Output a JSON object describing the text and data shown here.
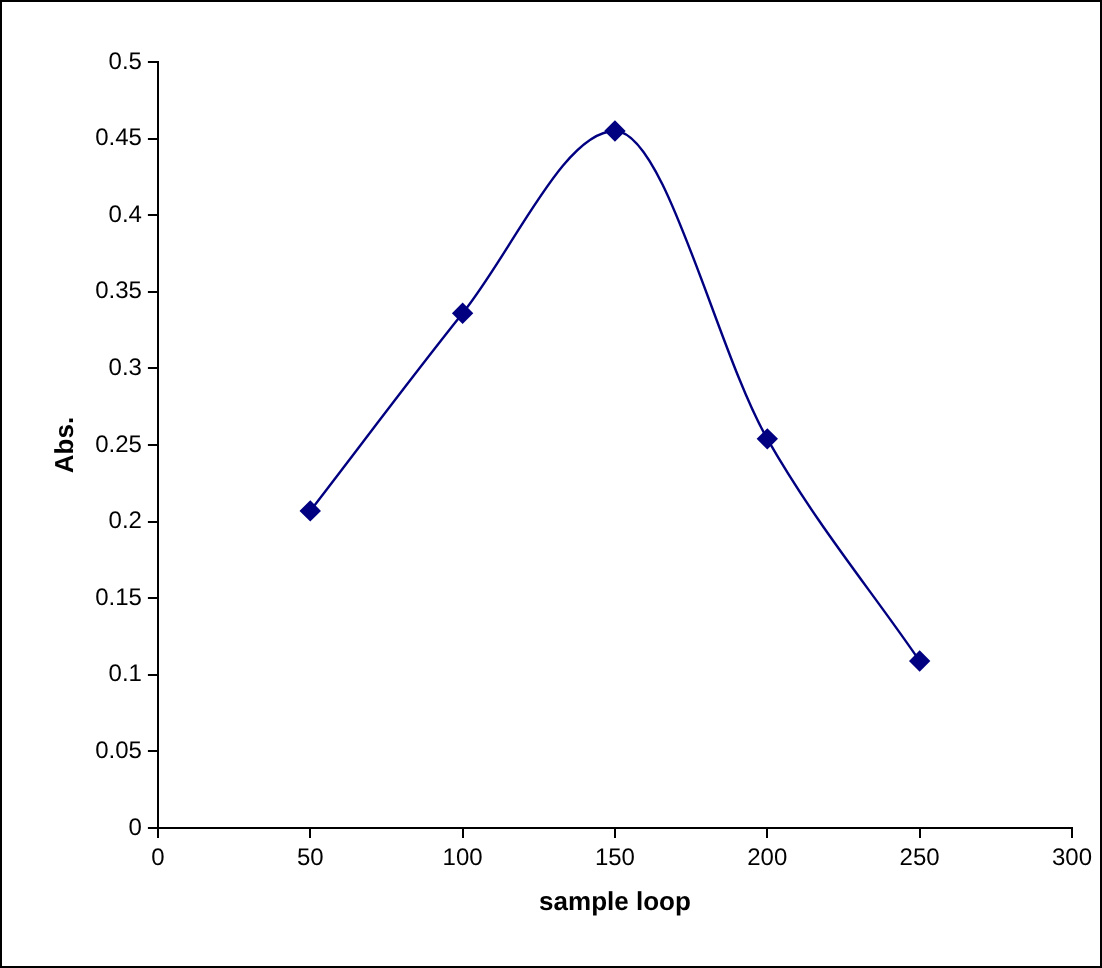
{
  "chart_data": {
    "type": "line",
    "xlabel": "sample loop",
    "ylabel": "Abs.",
    "x": [
      50,
      100,
      150,
      200,
      250
    ],
    "series": [
      {
        "color": "#000080",
        "values": [
          0.207,
          0.336,
          0.455,
          0.254,
          0.109
        ]
      }
    ],
    "xlim": [
      0,
      300
    ],
    "xticks": [
      0,
      50,
      100,
      150,
      200,
      250,
      300
    ],
    "ylim": [
      0,
      0.5
    ],
    "yticks": [
      0,
      0.05,
      0.1,
      0.15,
      0.2,
      0.25,
      0.3,
      0.35,
      0.4,
      0.45,
      0.5
    ],
    "grid": false,
    "legend": false,
    "marker": "diamond",
    "line_style": "solid"
  }
}
